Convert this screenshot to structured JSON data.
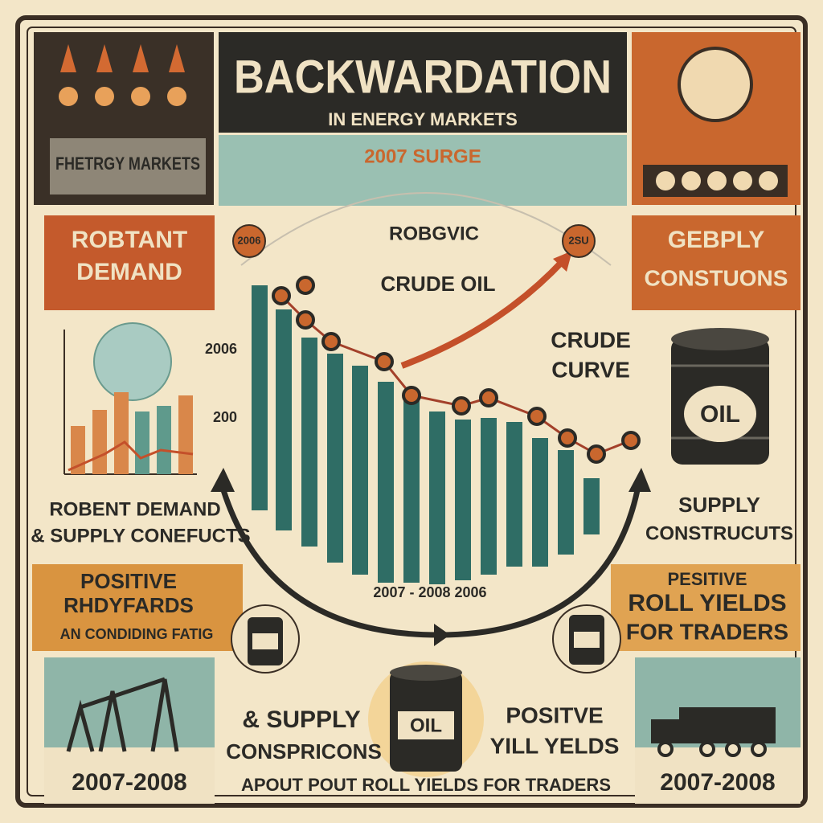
{
  "header": {
    "title": "BACKWARDATION",
    "subtitle": "IN ENERGY MARKETS",
    "banner": "2007 SURGE"
  },
  "top_left": {
    "label": "FHETRGY MARKETS"
  },
  "left_box": {
    "lines": [
      "ROBTANT",
      "DEMAND"
    ]
  },
  "right_box": {
    "lines": [
      "GEBPLY",
      "CONSTUONS"
    ]
  },
  "center": {
    "badge_left": "2006",
    "badge_right": "2SU",
    "label_top": "ROBGVIC",
    "label_crude": "CRUDE OIL",
    "label_curve": [
      "CRUDE",
      "CURVE"
    ],
    "axis_labels": [
      "2006",
      "200"
    ],
    "x_label": "2007 - 2008 2006"
  },
  "left_caption": {
    "lines": [
      "ROBENT DEMAND",
      "& SUPPLY CONEFUCTS"
    ]
  },
  "right_caption": {
    "lines": [
      "SUPPLY",
      "CONSTRUCUTS"
    ]
  },
  "barrel_label": "OIL",
  "left_banner": {
    "lines": [
      "POSITIVE",
      "RHDYFARDS",
      "AN CONDIDING FATIG"
    ]
  },
  "right_banner": {
    "lines": [
      "PESITIVE",
      "ROLL YIELDS",
      "FOR TRADERS"
    ]
  },
  "bottom": {
    "left_text": [
      "& SUPPLY",
      "CONSPRICONS"
    ],
    "right_text": [
      "POSITVE",
      "YILL YELDS"
    ],
    "footer": "APOUT POUT ROLL YIELDS FOR TRADERS",
    "year_left": "2007-2008",
    "year_right": "2007-2008"
  }
}
